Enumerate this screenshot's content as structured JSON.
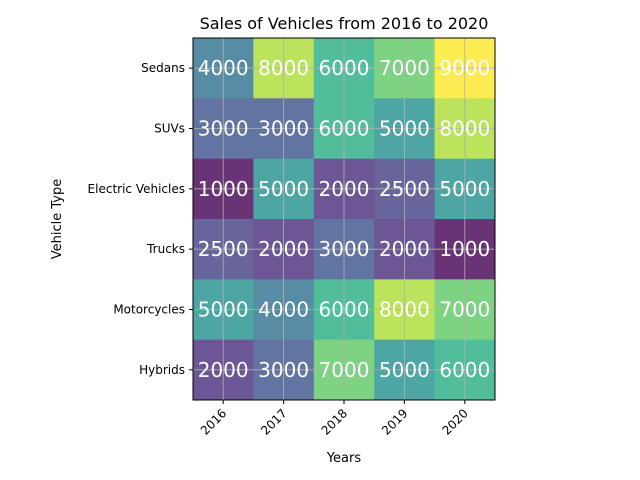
{
  "chart_data": {
    "type": "heatmap",
    "title": "Sales of Vehicles from 2016 to 2020",
    "xlabel": "Years",
    "ylabel": "Vehicle Type",
    "x": [
      "2016",
      "2017",
      "2018",
      "2019",
      "2020"
    ],
    "y": [
      "Sedans",
      "SUVs",
      "Electric Vehicles",
      "Trucks",
      "Motorcycles",
      "Hybrids"
    ],
    "values": [
      [
        4000,
        8000,
        6000,
        7000,
        9000
      ],
      [
        3000,
        3000,
        6000,
        5000,
        8000
      ],
      [
        1000,
        5000,
        2000,
        2500,
        5000
      ],
      [
        2500,
        2000,
        3000,
        2000,
        1000
      ],
      [
        5000,
        4000,
        6000,
        8000,
        7000
      ],
      [
        2000,
        3000,
        7000,
        5000,
        6000
      ]
    ],
    "colormap": "viridis",
    "vmin": 1000,
    "vmax": 9000,
    "grid": true
  }
}
